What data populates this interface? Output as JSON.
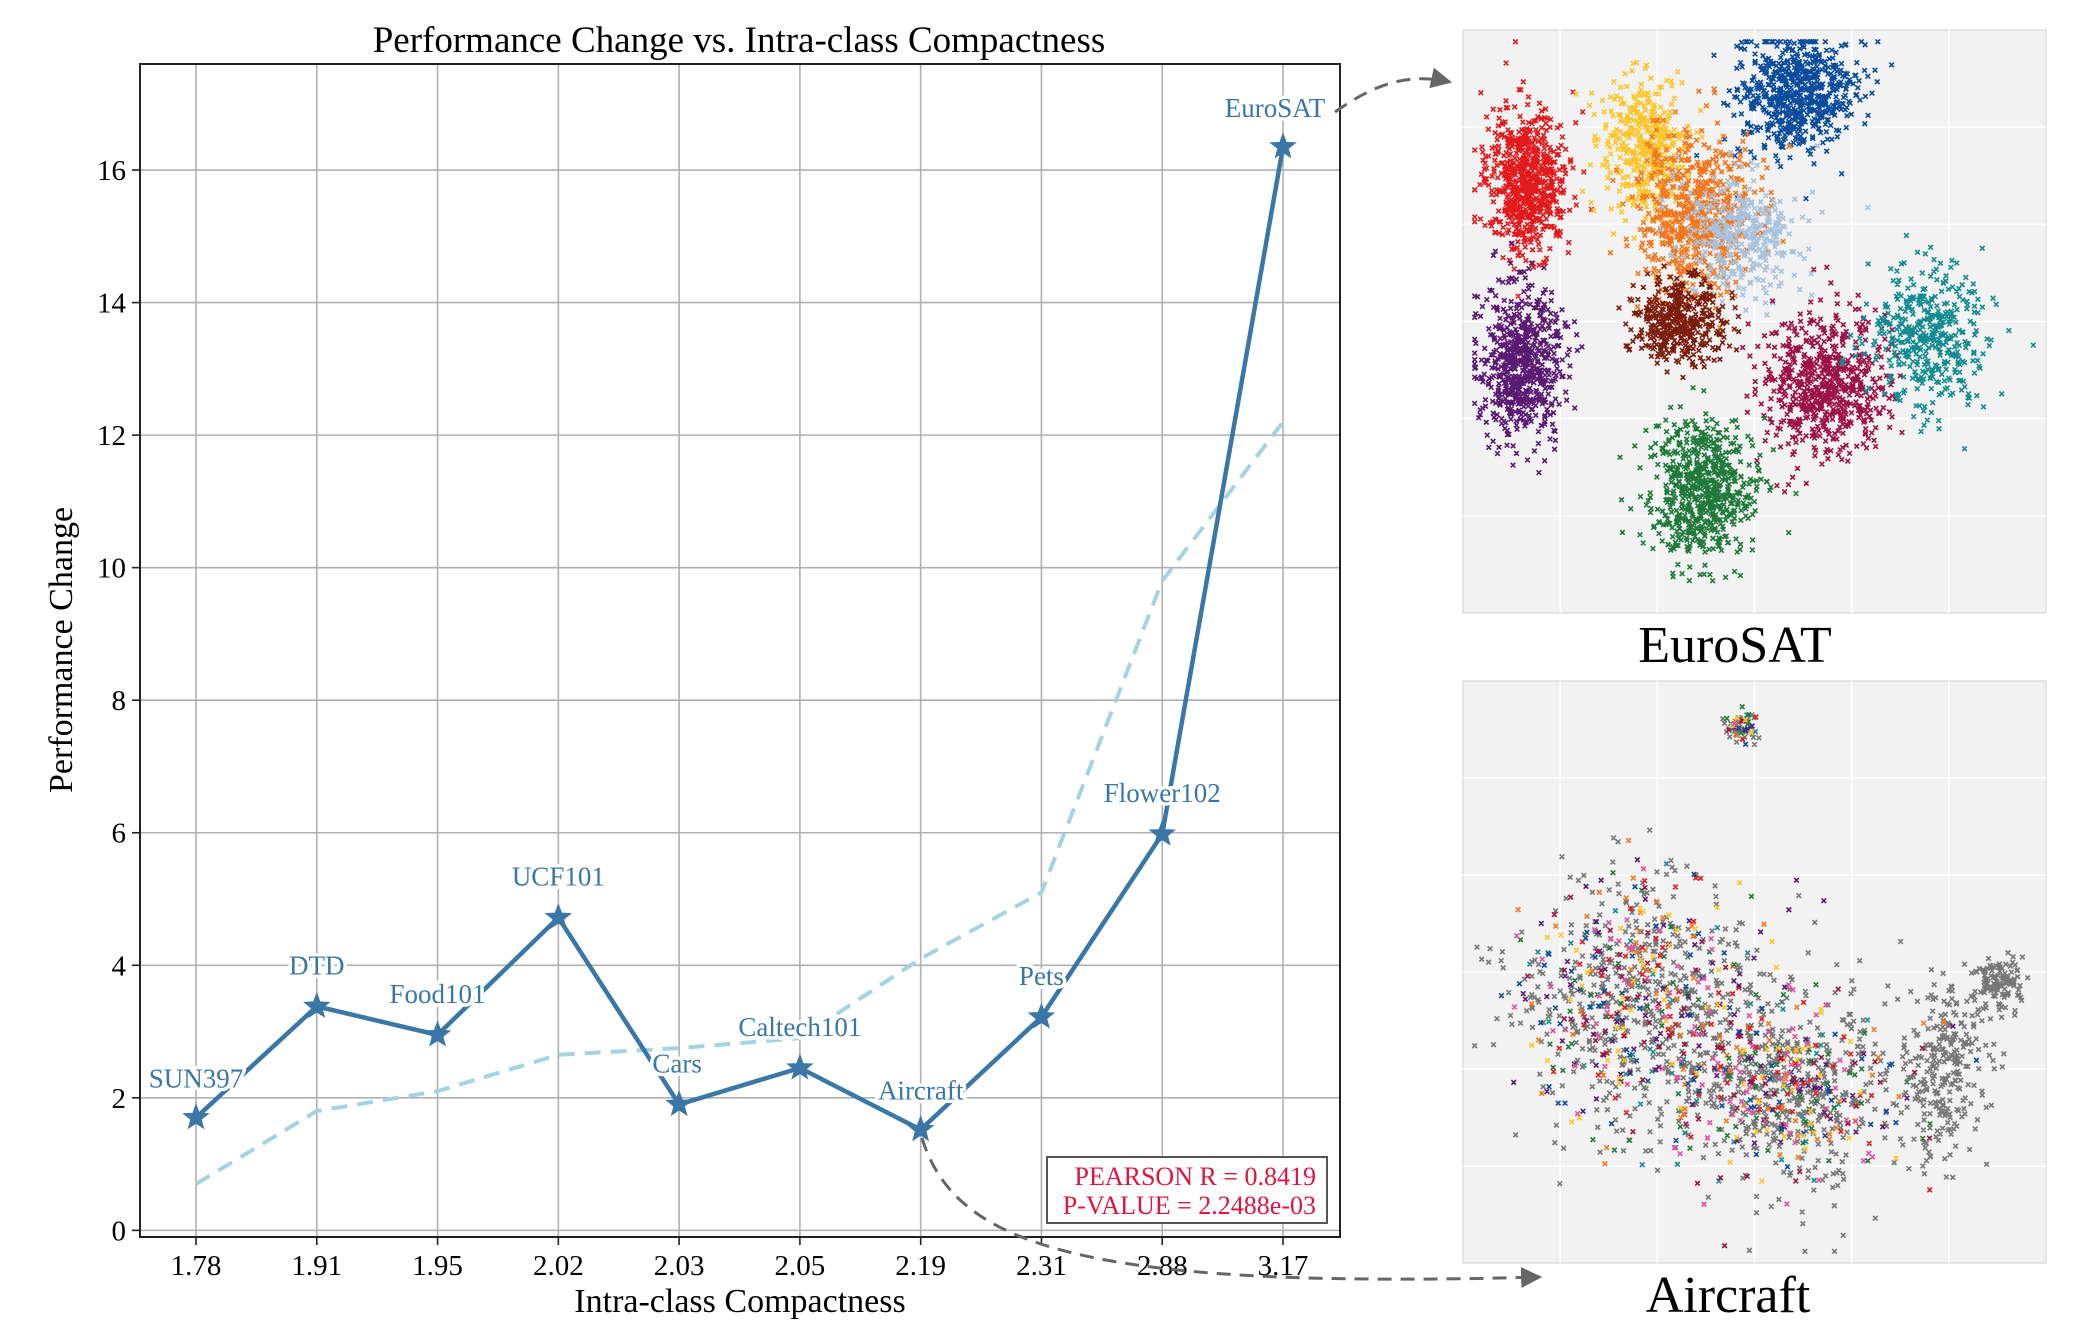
{
  "chart_data": [
    {
      "type": "line",
      "title": "Performance Change vs. Intra-class Compactness",
      "xlabel": "Intra-class Compactness",
      "ylabel": "Performance Change",
      "categories": [
        "1.78",
        "1.91",
        "1.95",
        "2.02",
        "2.03",
        "2.05",
        "2.19",
        "2.31",
        "2.88",
        "3.17"
      ],
      "ylim": [
        -0.1,
        17.6
      ],
      "yticks": [
        0,
        2,
        4,
        6,
        8,
        10,
        12,
        14,
        16
      ],
      "grid": true,
      "series": [
        {
          "style": "solid-star",
          "color": "#3a77a7",
          "values": [
            1.7,
            3.38,
            2.95,
            4.72,
            1.9,
            2.45,
            1.52,
            3.22,
            5.98,
            16.35
          ],
          "labels": [
            "SUN397",
            "DTD",
            "Food101",
            "UCF101",
            "Cars",
            "Caltech101",
            "Aircraft",
            "Pets",
            "Flower102",
            "EuroSAT"
          ]
        },
        {
          "style": "dashed",
          "color": "#a6d3e0",
          "values": [
            0.7,
            1.8,
            2.1,
            2.65,
            2.75,
            2.9,
            4.1,
            5.1,
            9.8,
            12.2
          ]
        }
      ],
      "annotations": {
        "pearson": "PEARSON R = 0.8419",
        "pvalue": "P-VALUE = 2.2488e-03"
      }
    },
    {
      "type": "scatter",
      "title": "EuroSAT",
      "panel_background": "#f2f2f2",
      "clusters": [
        {
          "color": "#e31a1c",
          "cx": 0.11,
          "cy": 0.26,
          "rx": 0.07,
          "ry": 0.12,
          "n": 700
        },
        {
          "color": "#5a1a72",
          "cx": 0.1,
          "cy": 0.57,
          "rx": 0.07,
          "ry": 0.13,
          "n": 650
        },
        {
          "color": "#fcc62a",
          "cx": 0.31,
          "cy": 0.2,
          "rx": 0.07,
          "ry": 0.12,
          "n": 400
        },
        {
          "color": "#0a4c9c",
          "cx": 0.57,
          "cy": 0.11,
          "rx": 0.1,
          "ry": 0.1,
          "n": 650
        },
        {
          "color": "#f2761c",
          "cx": 0.4,
          "cy": 0.32,
          "rx": 0.1,
          "ry": 0.14,
          "n": 650
        },
        {
          "color": "#a7c2de",
          "cx": 0.48,
          "cy": 0.35,
          "rx": 0.1,
          "ry": 0.1,
          "n": 350
        },
        {
          "color": "#7a1d0c",
          "cx": 0.37,
          "cy": 0.5,
          "rx": 0.08,
          "ry": 0.07,
          "n": 400
        },
        {
          "color": "#9c1246",
          "cx": 0.62,
          "cy": 0.61,
          "rx": 0.11,
          "ry": 0.12,
          "n": 650
        },
        {
          "color": "#138c91",
          "cx": 0.8,
          "cy": 0.52,
          "rx": 0.1,
          "ry": 0.12,
          "n": 420
        },
        {
          "color": "#1f7a3a",
          "cx": 0.41,
          "cy": 0.79,
          "rx": 0.09,
          "ry": 0.12,
          "n": 650
        }
      ]
    },
    {
      "type": "scatter",
      "title": "Aircraft",
      "panel_background": "#f2f2f2",
      "base_color": "#777777",
      "accent_colors": [
        "#e31a1c",
        "#fcc62a",
        "#0a4c9c",
        "#f2761c",
        "#9c1246",
        "#1f7a3a",
        "#138c91",
        "#5a1a72",
        "#e04fa0"
      ],
      "clusters": [
        {
          "cx": 0.48,
          "cy": 0.08,
          "rx": 0.03,
          "ry": 0.03,
          "n": 60
        },
        {
          "cx": 0.3,
          "cy": 0.55,
          "rx": 0.2,
          "ry": 0.2,
          "n": 900
        },
        {
          "cx": 0.55,
          "cy": 0.7,
          "rx": 0.2,
          "ry": 0.17,
          "n": 800
        },
        {
          "cx": 0.83,
          "cy": 0.67,
          "rx": 0.07,
          "ry": 0.16,
          "n": 260
        },
        {
          "cx": 0.92,
          "cy": 0.52,
          "rx": 0.04,
          "ry": 0.04,
          "n": 120
        }
      ]
    }
  ]
}
